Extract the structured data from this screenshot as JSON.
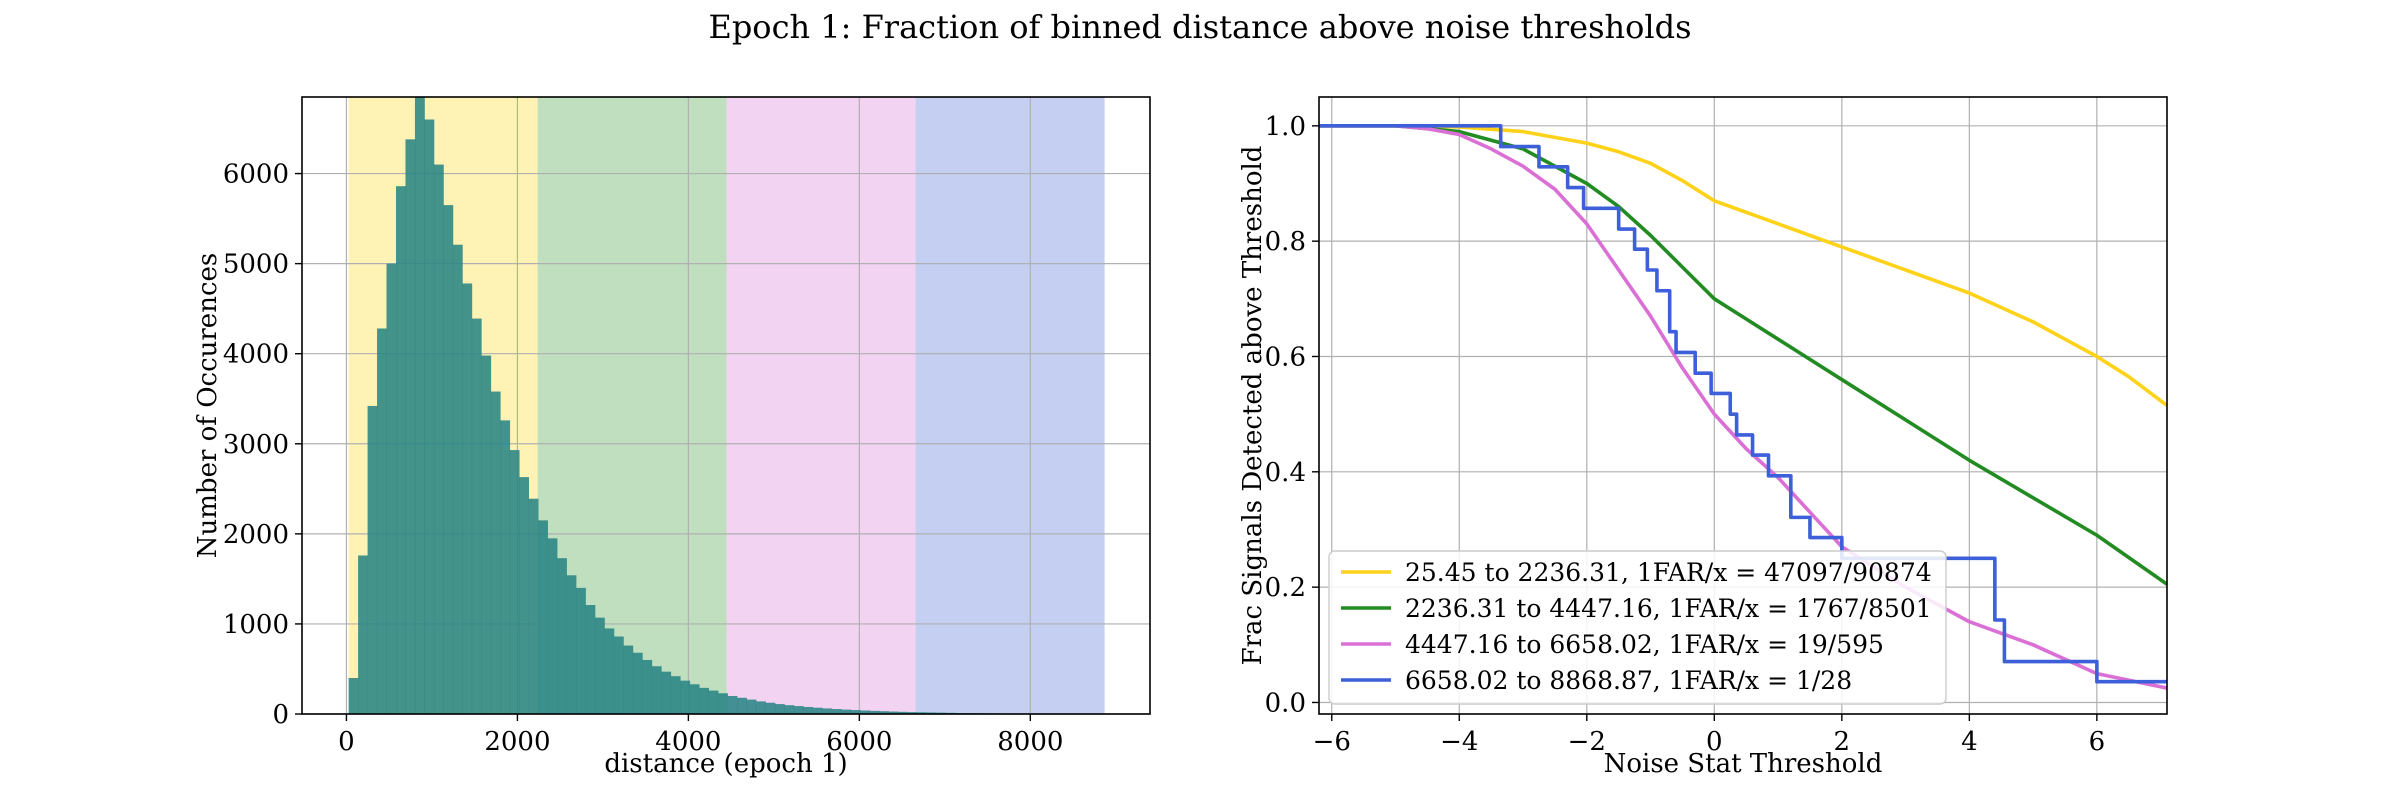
{
  "figure": {
    "suptitle": "Epoch 1: Fraction of binned distance above noise thresholds"
  },
  "chart_data": [
    {
      "type": "bar",
      "title": "",
      "xlabel": "distance (epoch 1)",
      "ylabel": "Number of Occurences",
      "xlim": [
        -520,
        9400
      ],
      "ylim": [
        0,
        6850
      ],
      "xticks": [
        0,
        2000,
        4000,
        6000,
        8000
      ],
      "yticks": [
        0,
        1000,
        2000,
        3000,
        4000,
        5000,
        6000
      ],
      "grid": true,
      "bin_width": 110.82,
      "bin_start": 25.45,
      "counts": [
        400,
        1760,
        3420,
        4280,
        5000,
        5860,
        6380,
        6850,
        6600,
        6100,
        5650,
        5210,
        4780,
        4390,
        3980,
        3580,
        3260,
        2930,
        2630,
        2390,
        2150,
        1950,
        1730,
        1540,
        1400,
        1210,
        1070,
        950,
        860,
        760,
        680,
        600,
        530,
        470,
        420,
        370,
        330,
        290,
        260,
        230,
        200,
        180,
        160,
        140,
        125,
        110,
        98,
        88,
        78,
        70,
        62,
        55,
        49,
        44,
        39,
        35,
        31,
        27,
        24,
        21,
        19,
        17,
        15,
        13,
        11,
        10,
        9,
        8,
        7,
        6,
        5,
        4,
        4,
        3,
        3,
        2,
        2,
        2,
        1,
        1
      ],
      "bands": [
        {
          "from": 25.45,
          "to": 2236.31,
          "color": "#fde979",
          "opacity": 0.55
        },
        {
          "from": 2236.31,
          "to": 4447.16,
          "color": "#7fbf7f",
          "opacity": 0.5
        },
        {
          "from": 4447.16,
          "to": 6658.02,
          "color": "#e6a8e6",
          "opacity": 0.5
        },
        {
          "from": 6658.02,
          "to": 8868.87,
          "color": "#8aa0e6",
          "opacity": 0.5
        }
      ],
      "bar_color": "#2a8585",
      "bar_opacity": 0.88
    },
    {
      "type": "line",
      "title": "",
      "xlabel": "Noise Stat Threshold",
      "ylabel": "Frac Signals Detected above Threshold",
      "xlim": [
        -6.2,
        7.1
      ],
      "ylim": [
        -0.02,
        1.05
      ],
      "xticks": [
        -6,
        -4,
        -2,
        0,
        2,
        4,
        6
      ],
      "xtick_labels": [
        "−6",
        "−4",
        "−2",
        "0",
        "2",
        "4",
        "6"
      ],
      "yticks": [
        0.0,
        0.2,
        0.4,
        0.6,
        0.8,
        1.0
      ],
      "ytick_labels": [
        "0.0",
        "0.2",
        "0.4",
        "0.6",
        "0.8",
        "1.0"
      ],
      "grid": true,
      "legend_position": "lower-left",
      "series": [
        {
          "name": "25.45 to 2236.31, 1FAR/x = 47097/90874",
          "color": "#ffd21a",
          "step": false,
          "x": [
            -6.2,
            -5,
            -4,
            -3,
            -2,
            -1.5,
            -1,
            -0.5,
            0,
            0.5,
            1,
            1.5,
            2,
            3,
            4,
            4.5,
            5,
            5.5,
            6,
            6.5,
            7.1
          ],
          "y": [
            1.0,
            1.0,
            0.998,
            0.99,
            0.97,
            0.955,
            0.935,
            0.905,
            0.87,
            0.85,
            0.83,
            0.81,
            0.79,
            0.75,
            0.71,
            0.685,
            0.66,
            0.63,
            0.6,
            0.565,
            0.515
          ]
        },
        {
          "name": "2236.31 to 4447.16, 1FAR/x = 1767/8501",
          "color": "#228b22",
          "step": false,
          "x": [
            -6.2,
            -5,
            -4,
            -3,
            -2,
            -1.5,
            -1,
            -0.5,
            0,
            0.5,
            1,
            1.5,
            2,
            3,
            4,
            5,
            6,
            7.1
          ],
          "y": [
            1.0,
            1.0,
            0.99,
            0.96,
            0.9,
            0.86,
            0.81,
            0.755,
            0.7,
            0.665,
            0.63,
            0.595,
            0.56,
            0.49,
            0.42,
            0.355,
            0.29,
            0.205
          ]
        },
        {
          "name": "4447.16 to 6658.02, 1FAR/x = 19/595",
          "color": "#da70d6",
          "step": false,
          "x": [
            -6.2,
            -5,
            -4.5,
            -4,
            -3.5,
            -3,
            -2.5,
            -2,
            -1.5,
            -1,
            -0.5,
            0,
            0.5,
            1,
            1.5,
            2,
            3,
            4,
            5,
            6,
            7.1
          ],
          "y": [
            1.0,
            1.0,
            0.995,
            0.985,
            0.96,
            0.93,
            0.89,
            0.83,
            0.75,
            0.67,
            0.58,
            0.5,
            0.44,
            0.39,
            0.33,
            0.27,
            0.2,
            0.14,
            0.1,
            0.05,
            0.025
          ]
        },
        {
          "name": "6658.02 to 8868.87, 1FAR/x = 1/28",
          "color": "#3d5fd9",
          "step": true,
          "x": [
            -6.2,
            -3.35,
            -2.75,
            -2.3,
            -2.05,
            -1.5,
            -1.25,
            -1.05,
            -0.9,
            -0.7,
            -0.6,
            -0.3,
            -0.05,
            0.25,
            0.35,
            0.6,
            0.85,
            1.2,
            1.5,
            2.0,
            4.4,
            4.55,
            6.0,
            7.1
          ],
          "y": [
            1.0,
            0.964,
            0.929,
            0.893,
            0.857,
            0.821,
            0.786,
            0.75,
            0.714,
            0.643,
            0.607,
            0.571,
            0.536,
            0.5,
            0.464,
            0.429,
            0.393,
            0.321,
            0.286,
            0.25,
            0.143,
            0.071,
            0.036,
            0.036
          ]
        }
      ]
    }
  ]
}
